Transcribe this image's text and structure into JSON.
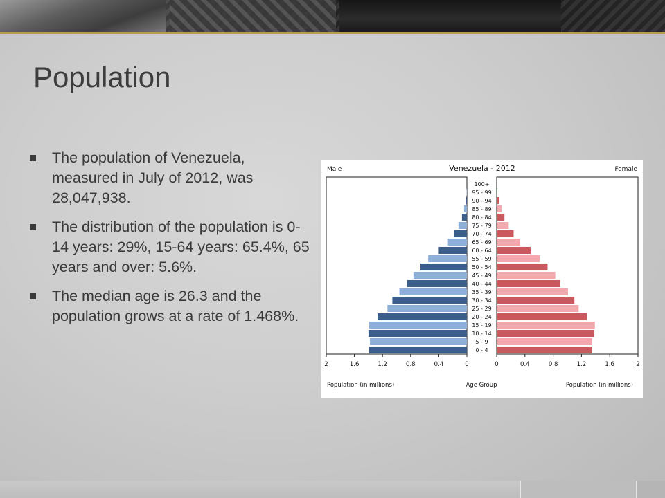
{
  "slide": {
    "title": "Population",
    "bullets": [
      "The population of Venezuela, measured in July of 2012, was 28,047,938.",
      "The distribution of the population is 0-14 years: 29%, 15-64 years: 65.4%, 65 years and over: 5.6%.",
      "The median age is 26.3 and the population grows at a rate of 1.468%."
    ]
  },
  "chart_data": {
    "type": "bar",
    "orientation": "horizontal-pyramid",
    "title": "Venezuela - 2012",
    "left_label": "Male",
    "right_label": "Female",
    "xlabel_left": "Population (in millions)",
    "xlabel_center": "Age Group",
    "xlabel_right": "Population (in millions)",
    "x_ticks_left": [
      "2",
      "1.6",
      "1.2",
      "0.8",
      "0.4",
      "0"
    ],
    "x_ticks_right": [
      "0",
      "0.4",
      "0.8",
      "1.2",
      "1.6",
      "2"
    ],
    "xlim": [
      0,
      2
    ],
    "categories": [
      "100+",
      "95 - 99",
      "90 - 94",
      "85 - 89",
      "80 - 84",
      "75 - 79",
      "70 - 74",
      "65 - 69",
      "60 - 64",
      "55 - 59",
      "50 - 54",
      "45 - 49",
      "40 - 44",
      "35 - 39",
      "30 - 34",
      "25 - 29",
      "20 - 24",
      "15 - 19",
      "10 - 14",
      "5 - 9",
      "0 - 4"
    ],
    "series": [
      {
        "name": "Male",
        "color_dark": "#3c5e8a",
        "color_light": "#8eafd8",
        "values": [
          0.0,
          0.005,
          0.015,
          0.04,
          0.07,
          0.12,
          0.18,
          0.27,
          0.4,
          0.55,
          0.66,
          0.76,
          0.85,
          0.96,
          1.06,
          1.13,
          1.27,
          1.39,
          1.4,
          1.38,
          1.39
        ]
      },
      {
        "name": "Female",
        "color_dark": "#c9595f",
        "color_light": "#f2a9ae",
        "values": [
          0.0,
          0.008,
          0.03,
          0.07,
          0.11,
          0.17,
          0.24,
          0.33,
          0.48,
          0.61,
          0.72,
          0.83,
          0.9,
          1.01,
          1.1,
          1.16,
          1.28,
          1.39,
          1.38,
          1.35,
          1.35
        ]
      }
    ]
  }
}
